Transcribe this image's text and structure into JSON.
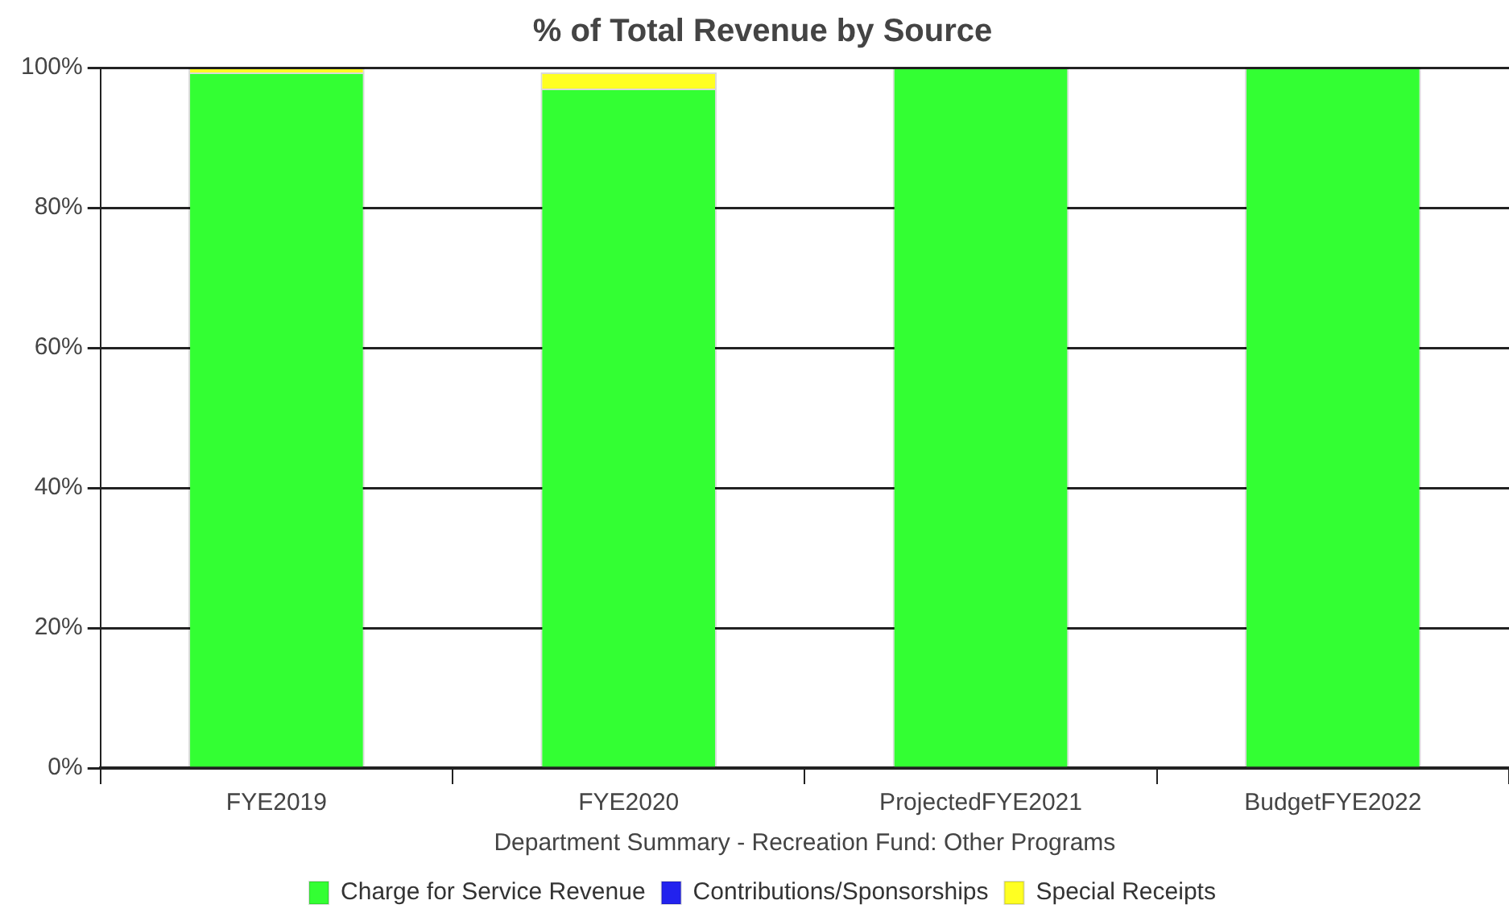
{
  "chart_data": {
    "type": "bar",
    "title": "% of Total Revenue by Source",
    "xlabel": "Department Summary - Recreation Fund: Other Programs",
    "categories": [
      "FYE2019",
      "FYE2020",
      "ProjectedFYE2021",
      "BudgetFYE2022"
    ],
    "stacked": true,
    "series": [
      {
        "name": "Charge for Service Revenue",
        "color": "#33ff33",
        "values": [
          99.3,
          97,
          100,
          100
        ]
      },
      {
        "name": "Contributions/Sponsorships",
        "color": "#2222ee",
        "values": [
          0,
          0,
          0,
          0
        ]
      },
      {
        "name": "Special Receipts",
        "color": "#ffff22",
        "values": [
          0.7,
          2.3,
          0,
          0
        ]
      }
    ],
    "ylim": [
      0,
      100
    ],
    "yticks": [
      {
        "value": 0,
        "label": "0%"
      },
      {
        "value": 20,
        "label": "20%"
      },
      {
        "value": 40,
        "label": "40%"
      },
      {
        "value": 60,
        "label": "60%"
      },
      {
        "value": 80,
        "label": "80%"
      },
      {
        "value": 100,
        "label": "100%"
      }
    ],
    "grid": "y",
    "legend": "bottom"
  }
}
